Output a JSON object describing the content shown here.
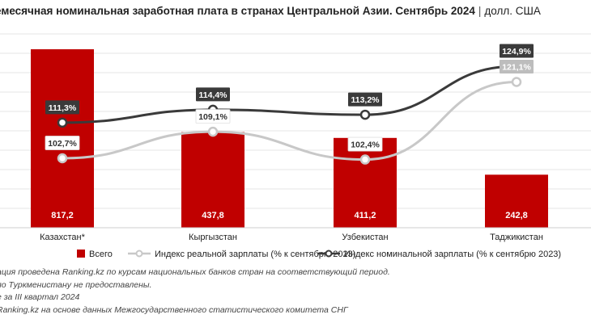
{
  "title": {
    "main": "емесячная номинальная заработная плата в странах Центральной Азии. Сентябрь 2024",
    "separator": "|",
    "unit": "долл. США"
  },
  "colors": {
    "bar": "#c00000",
    "nominal_line": "#3a3a3a",
    "real_line": "#c8c8c8",
    "nominal_tag": "#3a3a3a",
    "real_tag_dark": "#ffffff",
    "real_tag_last": "#bdbdbd",
    "grid": "#e6e6e6"
  },
  "chart_data": {
    "type": "bar",
    "categories": [
      "Казахстан*",
      "Кыргызстан",
      "Узбекистан",
      "Таджикистан"
    ],
    "series": [
      {
        "name": "Всего",
        "type": "bar",
        "values": [
          817.2,
          437.8,
          411.2,
          242.8
        ],
        "labels": [
          "817,2",
          "437,8",
          "411,2",
          "242,8"
        ]
      },
      {
        "name": "Индекс реальной зарплаты (% к сентябрю 2023)",
        "type": "line",
        "values": [
          102.7,
          109.1,
          102.4,
          121.1
        ],
        "labels": [
          "102,7%",
          "109,1%",
          "102,4%",
          "121,1%"
        ]
      },
      {
        "name": "Индекс номинальной зарплаты (% к сентябрю 2023)",
        "type": "line",
        "values": [
          111.3,
          114.4,
          113.2,
          124.9
        ],
        "labels": [
          "111,3%",
          "114,4%",
          "113,2%",
          "124,9%"
        ]
      }
    ],
    "grid": true,
    "legend_position": "bottom"
  },
  "notes": [
    "ация проведена Ranking.kz по курсам национальных банков стран на соответствующий период.",
    "по Туркменистану не предоставлены.",
    "е за III квартал 2024",
    "Ranking.kz на основе данных Межгосударственного статистического комитета СНГ"
  ]
}
